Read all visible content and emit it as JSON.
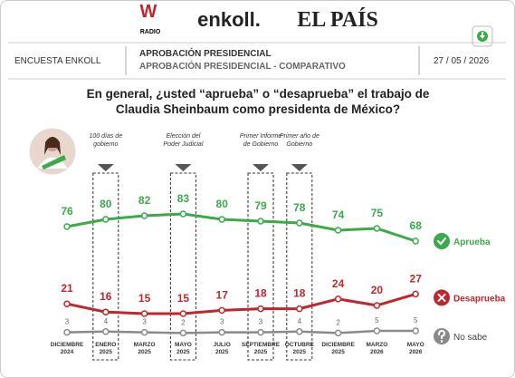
{
  "header": {
    "logos": {
      "radio_letter": "W",
      "radio": "RADIO",
      "enkoll": "enkoll.",
      "elpais": "EL PAÍS"
    },
    "left": "ENCUESTA ENKOLL",
    "title": "APROBACIÓN PRESIDENCIAL",
    "subtitle": "APROBACIÓN PRESIDENCIAL - COMPARATIVO",
    "date": "27 / 05 / 2026"
  },
  "question": [
    "En general, ¿usted “aprueba” o “desaprueba” el trabajo de",
    "Claudia Sheinbaum como presidenta de México?"
  ],
  "chart_data": {
    "type": "line",
    "categories": [
      "DICIEMBRE 2024",
      "ENERO 2025",
      "MARZO 2025",
      "MAYO 2025",
      "JULIO 2025",
      "SEPTIEMBRE 2025",
      "OCTUBRE 2025",
      "DICIEMBRE 2025",
      "MARZO 2026",
      "MAYO 2026"
    ],
    "annotations": [
      "100 días de gobierno",
      "Elección del Poder Judicial",
      "Primer Informe de Gobierno",
      "Primer año de Gobierno"
    ],
    "series": [
      {
        "name": "Aprueba",
        "color": "#3aaa4a",
        "values": [
          76,
          80,
          82,
          83,
          80,
          79,
          78,
          74,
          75,
          68
        ]
      },
      {
        "name": "Desaprueba",
        "color": "#c0262c",
        "values": [
          21,
          16,
          15,
          15,
          17,
          18,
          18,
          24,
          20,
          27
        ]
      },
      {
        "name": "No sabe",
        "color": "#8a8a8a",
        "values": [
          3,
          4,
          3,
          2,
          3,
          3,
          4,
          2,
          5,
          5
        ]
      }
    ]
  }
}
